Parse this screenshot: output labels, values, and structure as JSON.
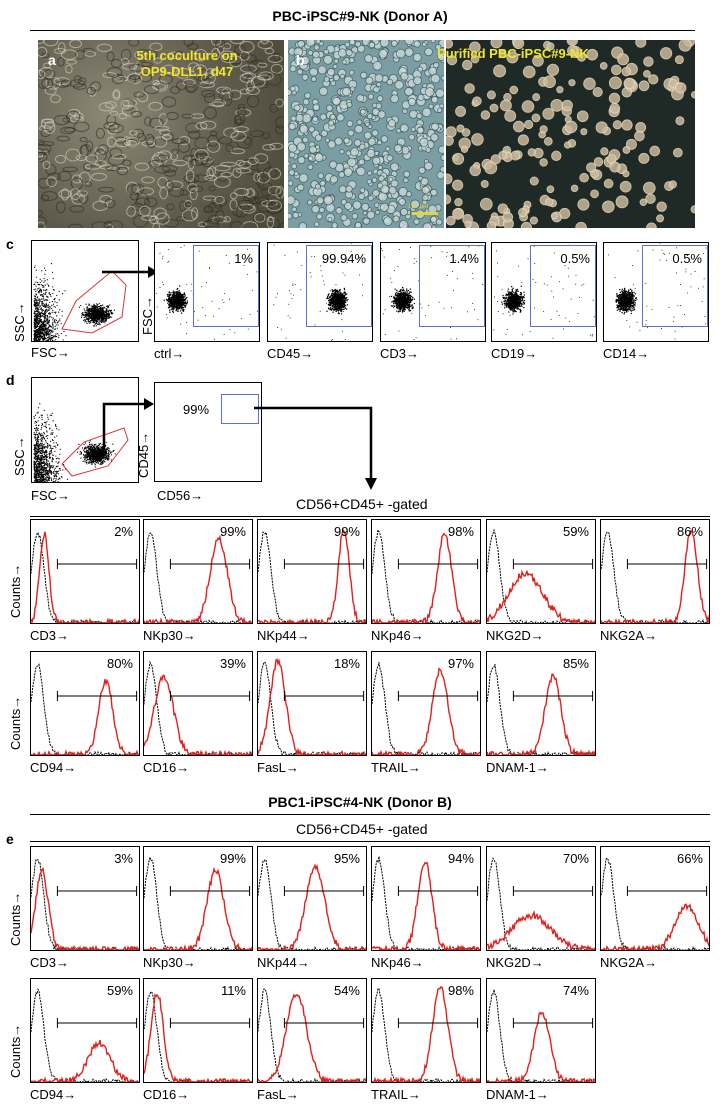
{
  "title_a": "PBC-iPSC#9-NK (Donor A)",
  "title_b": "PBC1-iPSC#4-NK (Donor B)",
  "panel_labels": {
    "a": "a",
    "b": "b",
    "c": "c",
    "d": "d",
    "e": "e"
  },
  "micro": {
    "a_caption_1": "5th coculture on",
    "a_caption_2": "OP9-DLL1, d47",
    "b_caption": "Purified PBC-iPSC#9-NK",
    "scale_bar": "100 µm"
  },
  "axis_arrow": "→",
  "scatter_c": {
    "gate_x": "FSC→",
    "gate_y": "SSC→",
    "plots_y": "FSC→",
    "plots": [
      {
        "x": "ctrl→",
        "pct": "1%",
        "cluster": "ctrl"
      },
      {
        "x": "CD45→",
        "pct": "99.94%",
        "cluster": "pos"
      },
      {
        "x": "CD3→",
        "pct": "1.4%",
        "cluster": "neg"
      },
      {
        "x": "CD19→",
        "pct": "0.5%",
        "cluster": "neg"
      },
      {
        "x": "CD14→",
        "pct": "0.5%",
        "cluster": "neg"
      }
    ]
  },
  "scatter_d": {
    "gate_x": "FSC→",
    "gate_y": "SSC→",
    "plot_x": "CD56→",
    "plot_y": "CD45→",
    "pct": "99%",
    "gated_label": "CD56+CD45+ -gated"
  },
  "hist_y": "Counts→",
  "hist_d": {
    "row1": [
      {
        "x": "CD3→",
        "pct": "2%",
        "red": 0.12,
        "ampl": 0.9,
        "spread": 0.06
      },
      {
        "x": "NKp30→",
        "pct": "99%",
        "red": 0.68,
        "ampl": 0.85,
        "spread": 0.11
      },
      {
        "x": "NKp44→",
        "pct": "99%",
        "red": 0.78,
        "ampl": 0.95,
        "spread": 0.07
      },
      {
        "x": "NKp46→",
        "pct": "98%",
        "red": 0.66,
        "ampl": 0.9,
        "spread": 0.09
      },
      {
        "x": "NKG2D→",
        "pct": "59%",
        "red": 0.35,
        "ampl": 0.5,
        "spread": 0.22
      },
      {
        "x": "NKG2A→",
        "pct": "86%",
        "red": 0.82,
        "ampl": 0.95,
        "spread": 0.08
      }
    ],
    "row2": [
      {
        "x": "CD94→",
        "pct": "80%",
        "red": 0.68,
        "ampl": 0.75,
        "spread": 0.09
      },
      {
        "x": "CD16→",
        "pct": "39%",
        "red": 0.18,
        "ampl": 0.8,
        "spread": 0.12
      },
      {
        "x": "FasL→",
        "pct": "18%",
        "red": 0.18,
        "ampl": 0.95,
        "spread": 0.1
      },
      {
        "x": "TRAIL→",
        "pct": "97%",
        "red": 0.62,
        "ampl": 0.85,
        "spread": 0.1
      },
      {
        "x": "DNAM-1→",
        "pct": "85%",
        "red": 0.6,
        "ampl": 0.8,
        "spread": 0.1
      }
    ]
  },
  "hist_e": {
    "gated_label": "CD56+CD45+ -gated",
    "row1": [
      {
        "x": "CD3→",
        "pct": "3%",
        "red": 0.1,
        "ampl": 0.8,
        "spread": 0.08
      },
      {
        "x": "NKp30→",
        "pct": "99%",
        "red": 0.65,
        "ampl": 0.8,
        "spread": 0.11
      },
      {
        "x": "NKp44→",
        "pct": "95%",
        "red": 0.52,
        "ampl": 0.85,
        "spread": 0.12
      },
      {
        "x": "NKp46→",
        "pct": "94%",
        "red": 0.48,
        "ampl": 0.9,
        "spread": 0.09
      },
      {
        "x": "NKG2D→",
        "pct": "70%",
        "red": 0.4,
        "ampl": 0.35,
        "spread": 0.25
      },
      {
        "x": "NKG2A→",
        "pct": "66%",
        "red": 0.78,
        "ampl": 0.45,
        "spread": 0.15
      }
    ],
    "row2": [
      {
        "x": "CD94→",
        "pct": "59%",
        "red": 0.62,
        "ampl": 0.4,
        "spread": 0.14
      },
      {
        "x": "CD16→",
        "pct": "11%",
        "red": 0.12,
        "ampl": 0.9,
        "spread": 0.08
      },
      {
        "x": "FasL→",
        "pct": "54%",
        "red": 0.35,
        "ampl": 0.9,
        "spread": 0.13
      },
      {
        "x": "TRAIL→",
        "pct": "98%",
        "red": 0.62,
        "ampl": 0.95,
        "spread": 0.1
      },
      {
        "x": "DNAM-1→",
        "pct": "74%",
        "red": 0.5,
        "ampl": 0.7,
        "spread": 0.1
      }
    ]
  },
  "colors": {
    "red": "#e0201b",
    "black": "#000000",
    "gate": "#5b6fd6",
    "gate_red": "#d63a3a",
    "caption": "#f2e62a"
  }
}
